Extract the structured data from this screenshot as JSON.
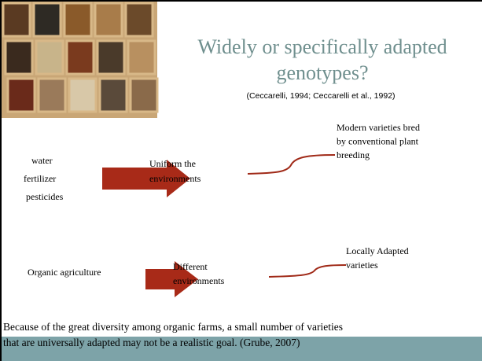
{
  "slide": {
    "title": [
      "Widely or specifically adapted",
      "genotypes?"
    ],
    "citation": "(Ceccarelli, 1994; Ceccarelli et al., 1992)",
    "row1": {
      "inputs": [
        "water",
        "fertilizer",
        "pesticides"
      ],
      "middle": [
        "Uniform the",
        "environments"
      ],
      "result": [
        "Modern varieties bred",
        "by conventional plant",
        "breeding"
      ]
    },
    "row2": {
      "inputs": [
        "Organic agriculture"
      ],
      "middle": [
        "Different",
        "environments"
      ],
      "result": [
        "Locally Adapted",
        "varieties"
      ]
    },
    "footer": [
      "Because of the great diversity among organic farms, a small number of varieties",
      "that are universally adapted may not be a realistic goal. (Grube, 2007)"
    ]
  }
}
